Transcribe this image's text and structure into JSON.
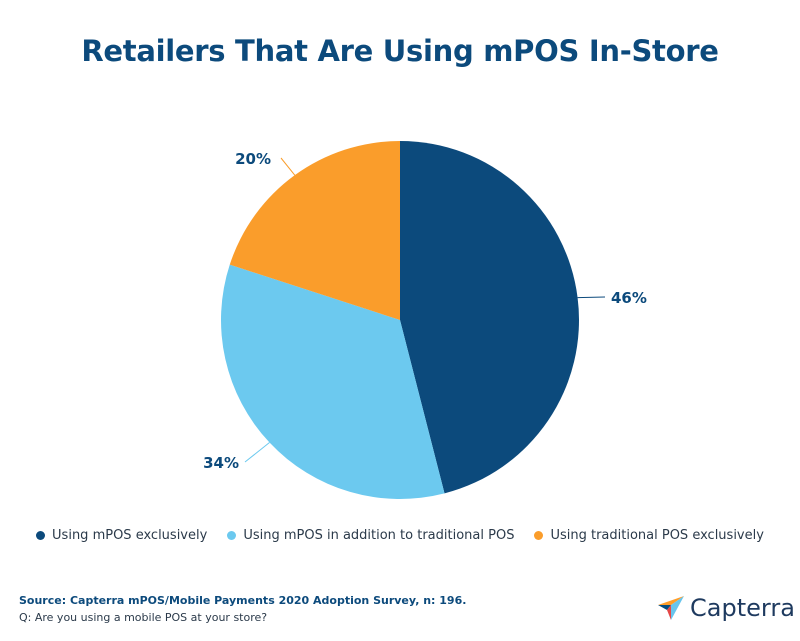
{
  "title": "Retailers That Are Using mPOS In-Store",
  "chart_data": {
    "type": "pie",
    "title": "Retailers That Are Using mPOS In-Store",
    "slices": [
      {
        "name": "Using mPOS exclusively",
        "value": 46,
        "label": "46%",
        "color": "#0c4a7c"
      },
      {
        "name": "Using mPOS in addition to traditional POS",
        "value": 34,
        "label": "34%",
        "color": "#6cc9ef"
      },
      {
        "name": "Using traditional POS exclusively",
        "value": 20,
        "label": "20%",
        "color": "#fa9d2b"
      }
    ],
    "legend_position": "bottom"
  },
  "legend": [
    {
      "label": "Using mPOS exclusively",
      "color": "#0c4a7c"
    },
    {
      "label": "Using mPOS in addition to traditional POS",
      "color": "#6cc9ef"
    },
    {
      "label": "Using traditional POS exclusively",
      "color": "#fa9d2b"
    }
  ],
  "footer": {
    "source": "Source: Capterra mPOS/Mobile Payments 2020 Adoption Survey, n: 196.",
    "question": "Q: Are you using a mobile POS at your store?"
  },
  "brand": {
    "name": "Capterra",
    "logo_icon": "capterra-logo-icon"
  }
}
